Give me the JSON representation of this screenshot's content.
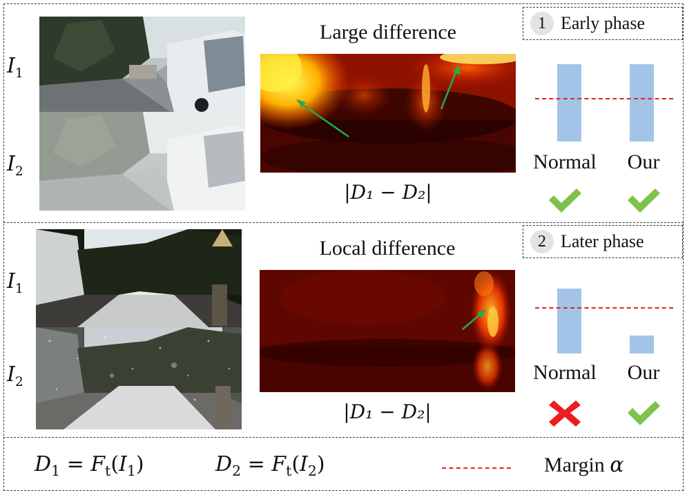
{
  "panels": [
    {
      "phase_number": "1",
      "phase_label": "Early phase",
      "heatmap_title": "Large difference",
      "diff_label": "|D₁ − D₂|",
      "image_labels": [
        "I",
        "I"
      ],
      "image_subs": [
        "1",
        "2"
      ],
      "chart_data": {
        "type": "bar",
        "categories": [
          "Normal",
          "Our"
        ],
        "values": [
          1.0,
          1.0
        ],
        "margin": 0.56,
        "ylim": [
          0,
          1.0
        ],
        "results": [
          "check",
          "check"
        ],
        "bar_color": "#a3c4e8",
        "margin_color": "#e0241d"
      }
    },
    {
      "phase_number": "2",
      "phase_label": "Later phase",
      "heatmap_title": "Local difference",
      "diff_label": "|D₁ − D₂|",
      "image_labels": [
        "I",
        "I"
      ],
      "image_subs": [
        "1",
        "2"
      ],
      "chart_data": {
        "type": "bar",
        "categories": [
          "Normal",
          "Our"
        ],
        "values": [
          1.0,
          0.28
        ],
        "margin": 0.71,
        "ylim": [
          0,
          1.0
        ],
        "results": [
          "cross",
          "check"
        ],
        "bar_color": "#a3c4e8",
        "margin_color": "#e0241d"
      }
    }
  ],
  "legend": {
    "eq1_lhs": "D",
    "eq1_lhs_sub": "1",
    "eq1_rhs": "F",
    "eq1_rhs_sub": "t",
    "eq1_arg": "I",
    "eq1_arg_sub": "1",
    "eq2_lhs": "D",
    "eq2_lhs_sub": "2",
    "eq2_rhs": "F",
    "eq2_rhs_sub": "t",
    "eq2_arg": "I",
    "eq2_arg_sub": "2",
    "margin_text": "Margin",
    "margin_symbol": "α"
  },
  "icons": [
    "check-icon",
    "cross-icon",
    "arrow-icon",
    "circled-number"
  ],
  "colors": {
    "check": "#7ec24a",
    "cross": "#ee1c1c",
    "arrow": "#1fae4f",
    "dash_border": "#2f3a4a"
  }
}
